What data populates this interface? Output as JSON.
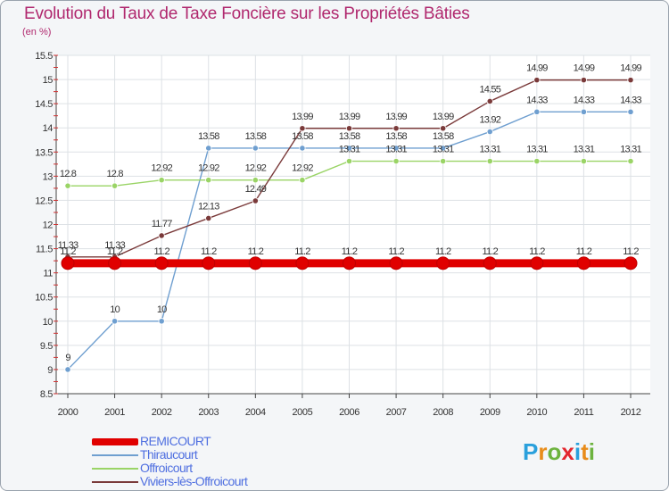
{
  "header": {
    "title": "Evolution du Taux de Taxe Foncière sur les Propriétés Bâties",
    "unit": "(en %)"
  },
  "chart_data": {
    "type": "line",
    "x": [
      "2000",
      "2001",
      "2002",
      "2003",
      "2004",
      "2005",
      "2006",
      "2007",
      "2008",
      "2009",
      "2010",
      "2011",
      "2012"
    ],
    "ylim": [
      8.5,
      15.5
    ],
    "yticks": [
      "8.5",
      "9",
      "9.5",
      "10",
      "10.5",
      "11",
      "11.5",
      "12",
      "12.5",
      "13",
      "13.5",
      "14",
      "14.5",
      "15",
      "15.5"
    ],
    "grid": true,
    "legend_position": "bottom-left",
    "series": [
      {
        "name": "REMICOURT",
        "color": "#e00000",
        "values": [
          11.2,
          11.2,
          11.2,
          11.2,
          11.2,
          11.2,
          11.2,
          11.2,
          11.2,
          11.2,
          11.2,
          11.2,
          11.2
        ],
        "labels": [
          "11.2",
          "11.2",
          "11.2",
          "11.2",
          "11.2",
          "11.2",
          "11.2",
          "11.2",
          "11.2",
          "11.2",
          "11.2",
          "11.2",
          "11.2"
        ]
      },
      {
        "name": "Thiraucourt",
        "color": "#6f9fd0",
        "values": [
          9,
          10,
          10,
          13.58,
          13.58,
          13.58,
          13.58,
          13.58,
          13.58,
          13.92,
          14.33,
          14.33,
          14.33
        ],
        "labels": [
          "9",
          "10",
          "10",
          "13.58",
          "13.58",
          "13.58",
          "13.58",
          "13.58",
          "13.58",
          "13.92",
          "14.33",
          "14.33",
          "14.33"
        ]
      },
      {
        "name": "Offroicourt",
        "color": "#9ad466",
        "values": [
          12.8,
          12.8,
          12.92,
          12.92,
          12.92,
          12.92,
          13.31,
          13.31,
          13.31,
          13.31,
          13.31,
          13.31,
          13.31
        ],
        "labels": [
          "12.8",
          "12.8",
          "12.92",
          "12.92",
          "12.92",
          "12.92",
          "13.31",
          "13.31",
          "13.31",
          "13.31",
          "13.31",
          "13.31",
          "13.31"
        ]
      },
      {
        "name": "Viviers-lès-Offroicourt",
        "color": "#7a3a3a",
        "values": [
          11.33,
          11.33,
          11.77,
          12.13,
          12.49,
          13.99,
          13.99,
          13.99,
          13.99,
          14.55,
          14.99,
          14.99,
          14.99
        ],
        "labels": [
          "11.33",
          "11.33",
          "11.77",
          "12.13",
          "12.49",
          "13.99",
          "13.99",
          "13.99",
          "13.99",
          "14.55",
          "14.99",
          "14.99",
          "14.99"
        ]
      }
    ]
  },
  "legend": {
    "items": [
      {
        "label": "REMICOURT",
        "color": "#e00000",
        "text_color": "#4f6fe0"
      },
      {
        "label": "Thiraucourt",
        "color": "#6f9fd0",
        "text_color": "#4f6fe0"
      },
      {
        "label": "Offroicourt",
        "color": "#9ad466",
        "text_color": "#4f6fe0"
      },
      {
        "label": "Viviers-lès-Offroicourt",
        "color": "#7a3a3a",
        "text_color": "#4f6fe0"
      }
    ]
  },
  "logo": {
    "letters": [
      "P",
      "r",
      "o",
      "x",
      "i",
      "t",
      "i"
    ],
    "colors": [
      "#2aa0dc",
      "#e88c1a",
      "#6db33f",
      "#e3262e",
      "#2aa0dc",
      "#e88c1a",
      "#6db33f"
    ]
  }
}
